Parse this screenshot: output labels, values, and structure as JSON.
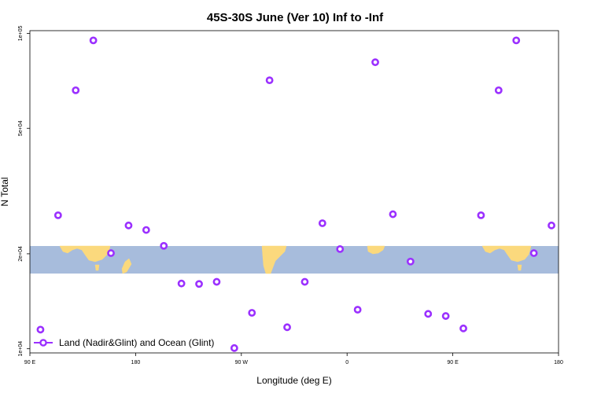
{
  "chart_data": {
    "type": "scatter",
    "title": "45S-30S June (Ver 10)   Inf to -Inf",
    "xlabel": "Longitude (deg E)",
    "ylabel": "N Total",
    "x_ticks": [
      {
        "value": 90,
        "label": "90 E"
      },
      {
        "value": 180,
        "label": "180"
      },
      {
        "value": 270,
        "label": "90 W"
      },
      {
        "value": 360,
        "label": "0"
      },
      {
        "value": 450,
        "label": "90 E"
      },
      {
        "value": 540,
        "label": "180"
      }
    ],
    "y_ticks": [
      {
        "value": 10000,
        "label": "1e+04"
      },
      {
        "value": 20000,
        "label": "2e+04"
      },
      {
        "value": 50000,
        "label": "5e+04"
      },
      {
        "value": 100000,
        "label": "1e+05"
      }
    ],
    "xlim": [
      90,
      540
    ],
    "ylim": [
      9700,
      102000
    ],
    "y_scale": "log",
    "map_band": {
      "lat_range": [
        -45,
        -30
      ],
      "ocean_color": "#a7bcdc",
      "land_color": "#fbd97d"
    },
    "legend": {
      "position": "bottom-left",
      "label": "Land (Nadir&Glint) and Ocean (Glint)"
    },
    "series": [
      {
        "name": "Land (Nadir&Glint) and Ocean (Glint)",
        "color": "#9b30ff",
        "x": [
          99,
          114,
          129,
          144,
          159,
          174,
          189,
          204,
          219,
          234,
          249,
          264,
          279,
          294,
          309,
          324,
          339,
          354,
          369,
          384,
          399,
          414,
          429,
          444,
          459,
          474,
          489,
          504,
          519,
          534
        ],
        "y": [
          11500,
          26500,
          66000,
          95000,
          20100,
          24600,
          23800,
          21200,
          16100,
          16050,
          16300,
          10050,
          13000,
          71000,
          11700,
          16300,
          25000,
          20700,
          13300,
          81000,
          26700,
          18900,
          12900,
          12700,
          11600,
          26500,
          66000,
          95000,
          20100,
          24600
        ]
      }
    ]
  }
}
